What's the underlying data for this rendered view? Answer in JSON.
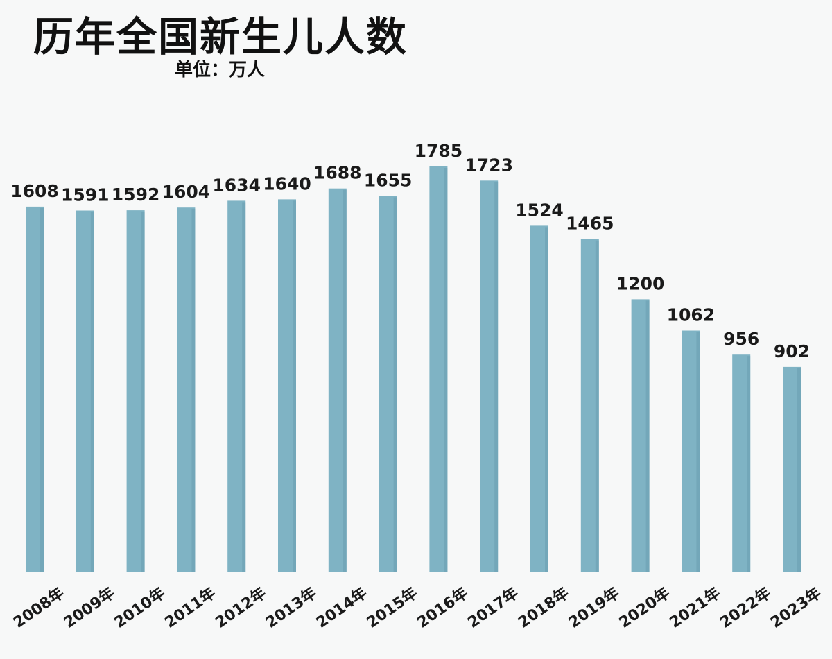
{
  "chart_data": {
    "type": "bar",
    "title": "历年全国新生儿人数",
    "subtitle": "单位：万人",
    "categories": [
      "2008年",
      "2009年",
      "2010年",
      "2011年",
      "2012年",
      "2013年",
      "2014年",
      "2015年",
      "2016年",
      "2017年",
      "2018年",
      "2019年",
      "2020年",
      "2021年",
      "2022年",
      "2023年"
    ],
    "values": [
      1608,
      1591,
      1592,
      1604,
      1634,
      1640,
      1688,
      1655,
      1785,
      1723,
      1524,
      1465,
      1200,
      1062,
      956,
      902
    ],
    "ylim": [
      0,
      1785
    ],
    "grid": false,
    "legend": "none",
    "colors": {
      "bar": "#7fb3c4",
      "bar_shade": "#6a9fb2",
      "text": "#1a1a1a",
      "background": "#f7f8f8"
    }
  }
}
